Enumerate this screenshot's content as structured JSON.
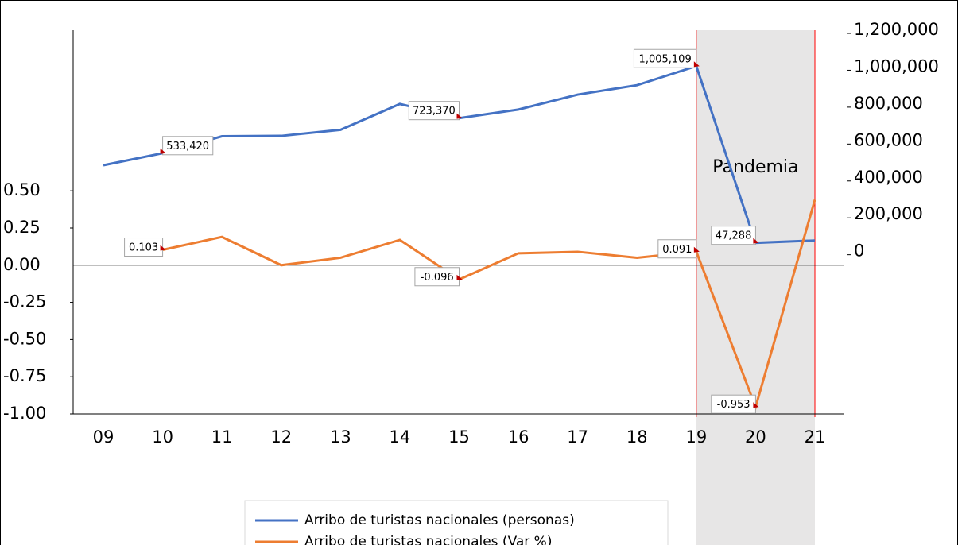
{
  "chart_data": {
    "type": "line",
    "categories": [
      "09",
      "10",
      "11",
      "12",
      "13",
      "14",
      "15",
      "16",
      "17",
      "18",
      "19",
      "20",
      "21"
    ],
    "series": [
      {
        "name": "Arribo de turistas nacionales (personas)",
        "color": "#4472c4",
        "axis": "y2",
        "values": [
          468000,
          533420,
          625000,
          627000,
          660000,
          800000,
          723370,
          770000,
          851000,
          902000,
          1005109,
          47288,
          60000
        ],
        "value_labels": [
          null,
          "533,420",
          null,
          null,
          null,
          null,
          "723,370",
          null,
          null,
          null,
          "1,005,109",
          "47,288",
          null
        ]
      },
      {
        "name": "Arribo de turistas nacionales  (Var %)",
        "color": "#ed7d31",
        "axis": "y",
        "values": [
          null,
          0.103,
          0.19,
          0.0,
          0.05,
          0.17,
          -0.096,
          0.08,
          0.09,
          0.05,
          0.091,
          -0.953,
          0.44
        ],
        "value_labels": [
          null,
          "0.103",
          null,
          null,
          null,
          null,
          "-0.096",
          null,
          null,
          null,
          "0.091",
          "-0.953",
          null
        ]
      }
    ],
    "ylim": [
      -1.0,
      1.58
    ],
    "yticks": [
      {
        "value": 0.5,
        "label": "0.50"
      },
      {
        "value": 0.25,
        "label": "0.25"
      },
      {
        "value": 0,
        "label": "0.00"
      },
      {
        "value": -0.25,
        "label": "-0.25"
      },
      {
        "value": -0.5,
        "label": "-0.50"
      },
      {
        "value": -0.75,
        "label": "-0.75"
      },
      {
        "value": -1,
        "label": "-1.00"
      }
    ],
    "y2lim": [
      -880000,
      1200000
    ],
    "y2ticks": [
      {
        "value": 0,
        "label": "0"
      },
      {
        "value": 200000,
        "label": "200,000"
      },
      {
        "value": 400000,
        "label": "400,000"
      },
      {
        "value": 600000,
        "label": "600,000"
      },
      {
        "value": 800000,
        "label": "800,000"
      },
      {
        "value": 1000000,
        "label": "1,000,000"
      },
      {
        "value": 1200000,
        "label": "1,200,000"
      }
    ],
    "shade": {
      "label": "Pandemia",
      "from": "19",
      "to": "21"
    },
    "legend": "bottom"
  }
}
